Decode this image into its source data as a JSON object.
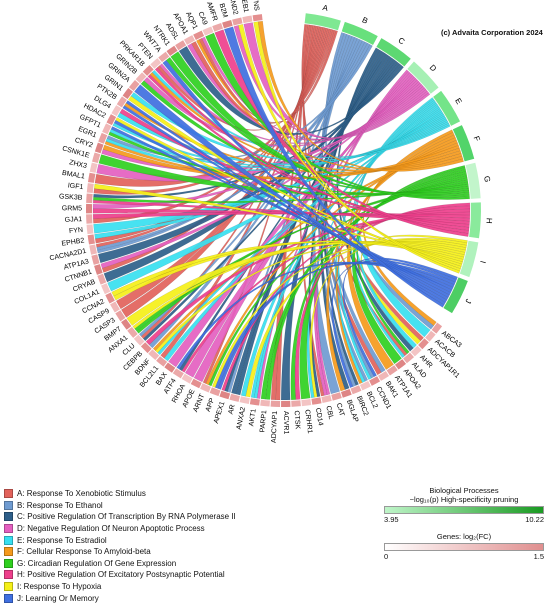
{
  "copyright": "(c) Advaita Corporation 2024",
  "chart_data": {
    "type": "chord",
    "processes": [
      {
        "id": "A",
        "name": "Response To Xenobiotic Stimulus",
        "color": "#e2625b"
      },
      {
        "id": "B",
        "name": "Response To Ethanol",
        "color": "#6f9bd1"
      },
      {
        "id": "C",
        "name": "Positive Regulation Of Transcription By RNA Polymerase II",
        "color": "#2e5f8a"
      },
      {
        "id": "D",
        "name": "Negative Regulation Of Neuron Apoptotic Process",
        "color": "#e45fc0"
      },
      {
        "id": "E",
        "name": "Response To Estradiol",
        "color": "#37dff0"
      },
      {
        "id": "F",
        "name": "Cellular Response To Amyloid-beta",
        "color": "#f59a1c"
      },
      {
        "id": "G",
        "name": "Circadian Regulation Of Gene Expression",
        "color": "#2fd01f"
      },
      {
        "id": "H",
        "name": "Positive Regulation Of Excitatory Postsynaptic Potential",
        "color": "#ee3f8c"
      },
      {
        "id": "I",
        "name": "Response To Hypoxia",
        "color": "#f5f018"
      },
      {
        "id": "J",
        "name": "Learning Or Memory",
        "color": "#3f6fe0"
      }
    ],
    "genes": [
      "ABCA3",
      "ACACB",
      "ADCYAP1R1",
      "AHR",
      "ALAD",
      "APOA2",
      "ATP1A1",
      "BAK1",
      "CCND1",
      "BCL2",
      "BIRC2",
      "BGLAP",
      "CAT",
      "CBL",
      "CD14",
      "CRHR1",
      "CTSK",
      "ACVR1",
      "ADCYAP1",
      "PARP1",
      "AKT1",
      "ANXA2",
      "AR",
      "APEX1",
      "APP",
      "ARNT",
      "APOE",
      "RHOA",
      "ATF4",
      "BAX",
      "BCL2L1",
      "BDNF",
      "CEBPB",
      "CLU",
      "ANXA1",
      "BMP7",
      "CASP3",
      "CASP9",
      "CCNA2",
      "COL1A1",
      "CRYAB",
      "CTNNB1",
      "ATP1A3",
      "CACNA2D1",
      "EPHB2",
      "FYN",
      "GJA1",
      "GRM5",
      "GSK3B",
      "IGF1",
      "BMAL1",
      "ZHX3",
      "CSNK1E",
      "CRY2",
      "EGR1",
      "GFPT1",
      "HDAC2",
      "DLG4",
      "PTK2B",
      "GRIN1",
      "GRIN2A",
      "GRIN2B",
      "PRKAR1B",
      "PTEN",
      "WNT7A",
      "NTRK1",
      "ADSL",
      "APOA1",
      "AQP1",
      "CA9",
      "AMFR",
      "B2M",
      "CCND2",
      "CREB1",
      "CTNS"
    ],
    "process_scale": {
      "title": "Biological Processes",
      "subtitle": "−log₁₀(p) High-specificity pruning",
      "min": "3.95",
      "max": "10.22",
      "color_min": "#bff5c9",
      "color_max": "#1a9a22"
    },
    "gene_scale": {
      "title": "Genes: log₂(FC)",
      "min": "0",
      "max": "1.5",
      "color_min": "#ffffff",
      "color_max": "#e08f8f"
    }
  }
}
